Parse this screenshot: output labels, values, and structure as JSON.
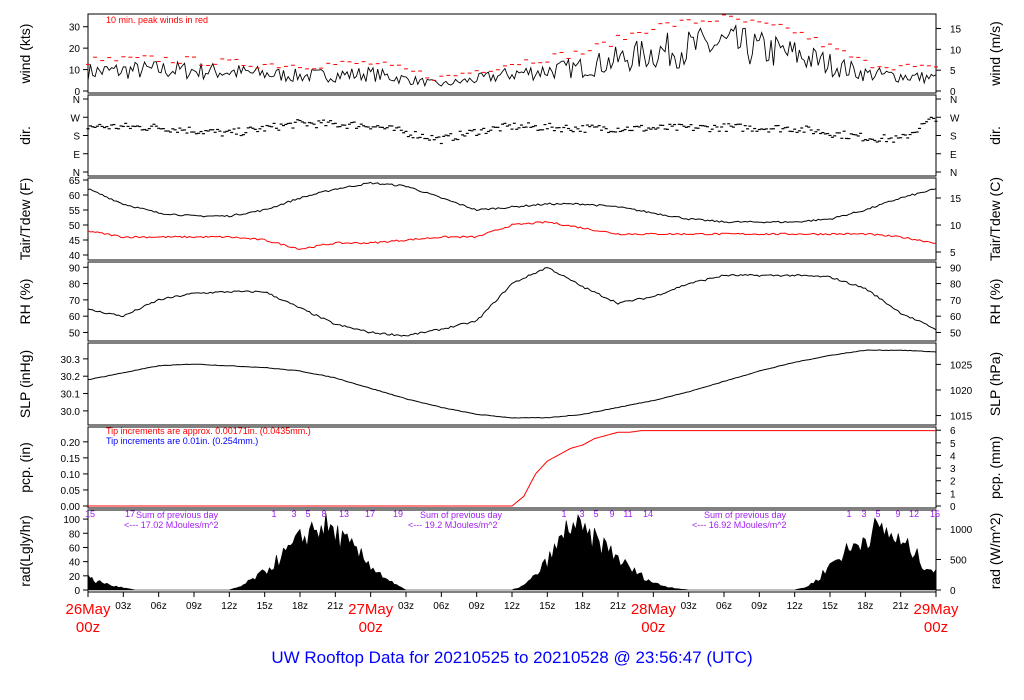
{
  "title": "UW Rooftop Data for 20210525  to  20210528 @ 23:56:47  (UTC)",
  "colors": {
    "title": "#0000ff",
    "red": "#ff0000",
    "blue": "#0000ff",
    "purple": "#a020f0",
    "black": "#000000"
  },
  "chart_data": [
    {
      "type": "line",
      "ylabel_left": "wind (kts)",
      "ylabel_right": "wind (m/s)",
      "ylim": [
        0,
        35
      ],
      "yticks_left": [
        0,
        10,
        20,
        30
      ],
      "yticks_right": [
        0,
        5,
        10,
        15
      ],
      "annotation": "10 min. peak winds in red",
      "series": [
        {
          "color": "#000000",
          "x": [
            0,
            6,
            12,
            18,
            24,
            30,
            36,
            42,
            48,
            54,
            60,
            66,
            72
          ],
          "values": [
            9,
            10,
            9,
            7,
            8,
            3,
            8,
            11,
            18,
            22,
            17,
            8,
            6
          ]
        },
        {
          "color": "#ff0000",
          "x": [
            0,
            6,
            12,
            18,
            24,
            30,
            36,
            42,
            48,
            54,
            60,
            66,
            72
          ],
          "values": [
            14,
            15,
            13,
            12,
            13,
            6,
            13,
            18,
            30,
            34,
            28,
            13,
            10
          ]
        }
      ]
    },
    {
      "type": "scatter",
      "ylabel_left": "dir.",
      "ylabel_right": "dir.",
      "yticks_left": [
        "N",
        "E",
        "S",
        "W",
        "N"
      ],
      "yticks_right": [
        "N",
        "E",
        "S",
        "W",
        "N"
      ],
      "series": [
        {
          "x": [
            0,
            6,
            9,
            12,
            18,
            24,
            30,
            33,
            36,
            42,
            48,
            54,
            60,
            66,
            69,
            72
          ],
          "values": [
            225,
            220,
            205,
            190,
            240,
            230,
            160,
            200,
            225,
            215,
            215,
            220,
            215,
            170,
            160,
            270
          ]
        }
      ]
    },
    {
      "type": "line",
      "ylabel_left": "Tair/Tdew (F)",
      "ylabel_right": "Tair/Tdew (C)",
      "ylim": [
        39,
        65
      ],
      "yticks_left": [
        40,
        45,
        50,
        55,
        60,
        65
      ],
      "yticks_right": [
        5,
        10,
        15
      ],
      "series": [
        {
          "color": "#000000",
          "x": [
            0,
            3,
            6,
            9,
            12,
            15,
            18,
            21,
            24,
            27,
            30,
            33,
            36,
            39,
            42,
            45,
            48,
            51,
            54,
            57,
            60,
            63,
            66,
            69,
            72
          ],
          "values": [
            62,
            57,
            54,
            53,
            53,
            55,
            59,
            62,
            64,
            63,
            59,
            55,
            56,
            57,
            57,
            56,
            54,
            52,
            51,
            51,
            51,
            52,
            55,
            59,
            62
          ]
        },
        {
          "color": "#ff0000",
          "x": [
            0,
            3,
            6,
            9,
            12,
            15,
            18,
            21,
            24,
            27,
            30,
            33,
            36,
            39,
            42,
            45,
            48,
            51,
            54,
            57,
            60,
            63,
            66,
            69,
            72
          ],
          "values": [
            48,
            46,
            46,
            46,
            46,
            45,
            42,
            44,
            44,
            45,
            46,
            46,
            50,
            51,
            49,
            47,
            47,
            47,
            47,
            47,
            47,
            47,
            47,
            46,
            44
          ]
        }
      ]
    },
    {
      "type": "line",
      "ylabel_left": "RH (%)",
      "ylabel_right": "RH (%)",
      "ylim": [
        46,
        92
      ],
      "yticks_left": [
        50,
        60,
        70,
        80,
        90
      ],
      "yticks_right": [
        50,
        60,
        70,
        80,
        90
      ],
      "series": [
        {
          "color": "#000000",
          "x": [
            0,
            3,
            6,
            9,
            12,
            15,
            18,
            21,
            24,
            27,
            30,
            33,
            36,
            39,
            42,
            45,
            48,
            51,
            54,
            57,
            60,
            63,
            66,
            69,
            72
          ],
          "values": [
            64,
            60,
            70,
            74,
            75,
            75,
            65,
            55,
            50,
            48,
            52,
            57,
            80,
            90,
            78,
            68,
            72,
            80,
            85,
            85,
            85,
            84,
            77,
            62,
            52
          ]
        }
      ]
    },
    {
      "type": "line",
      "ylabel_left": "SLP (inHg)",
      "ylabel_right": "SLP (hPa)",
      "ylim": [
        29.93,
        30.38
      ],
      "yticks_left": [
        30.0,
        30.1,
        30.2,
        30.3
      ],
      "yticks_right": [
        1015,
        1020,
        1025
      ],
      "series": [
        {
          "color": "#000000",
          "x": [
            0,
            3,
            6,
            9,
            12,
            15,
            18,
            21,
            24,
            27,
            30,
            33,
            36,
            39,
            42,
            45,
            48,
            51,
            54,
            57,
            60,
            63,
            66,
            69,
            72
          ],
          "values": [
            30.18,
            30.22,
            30.26,
            30.27,
            30.26,
            30.25,
            30.23,
            30.19,
            30.13,
            30.07,
            30.02,
            29.98,
            29.96,
            29.96,
            29.98,
            30.02,
            30.06,
            30.11,
            30.17,
            30.23,
            30.28,
            30.32,
            30.35,
            30.35,
            30.34
          ]
        }
      ]
    },
    {
      "type": "line",
      "ylabel_left": "pcp. (in)",
      "ylabel_right": "pcp. (mm)",
      "ylim": [
        0,
        0.24
      ],
      "yticks_left": [
        0.0,
        0.05,
        0.1,
        0.15,
        0.2
      ],
      "yticks_right": [
        0,
        1,
        2,
        3,
        4,
        5,
        6
      ],
      "annotations": [
        "Tip increments are approx. 0.00171in. (0.0435mm.)",
        "Tip increments are 0.01in. (0.254mm.)"
      ],
      "series": [
        {
          "color": "#ff0000",
          "x": [
            0,
            36,
            37,
            38,
            39,
            40,
            41,
            42,
            43,
            44,
            45,
            46,
            47,
            48,
            72
          ],
          "values": [
            0,
            0,
            0.03,
            0.1,
            0.14,
            0.16,
            0.18,
            0.19,
            0.21,
            0.22,
            0.23,
            0.23,
            0.235,
            0.235,
            0.235
          ]
        }
      ]
    },
    {
      "type": "area",
      "ylabel_left": "rad(Lgly/hr)",
      "ylabel_right": "rad (W/m^2)",
      "ylim": [
        0,
        110
      ],
      "yticks_left": [
        0,
        20,
        40,
        60,
        80,
        100
      ],
      "yticks_right": [
        0,
        500,
        1000
      ],
      "daily_sums": [
        "Sum of previous day",
        "<--- 17.02 MJoules/m^2",
        "Sum of previous day",
        "<--- 19.2 MJoules/m^2",
        "Sum of previous day",
        "<--- 16.92 MJoules/m^2"
      ],
      "hour_markers": [
        "15",
        "17",
        "1",
        "3",
        "5",
        "8",
        "13",
        "17",
        "19",
        "1",
        "3",
        "5",
        "9",
        "11",
        "14",
        "1",
        "3",
        "5",
        "9",
        "12",
        "15"
      ],
      "series": [
        {
          "color": "#000000",
          "x": [
            0,
            0.5,
            1,
            2,
            3,
            4,
            12,
            13,
            14,
            15,
            16,
            17,
            18,
            19,
            20,
            21,
            22,
            23,
            24,
            25,
            26,
            27,
            36,
            37,
            38,
            39,
            40,
            41,
            42,
            43,
            44,
            45,
            46,
            47,
            48,
            49,
            50,
            51,
            60,
            61,
            62,
            63,
            64,
            65,
            66,
            67,
            68,
            69,
            70,
            71,
            72
          ],
          "values": [
            25,
            10,
            12,
            6,
            3,
            0,
            0,
            5,
            15,
            25,
            40,
            55,
            70,
            85,
            90,
            80,
            65,
            50,
            35,
            20,
            8,
            0,
            0,
            6,
            20,
            40,
            65,
            95,
            80,
            70,
            60,
            45,
            30,
            20,
            10,
            5,
            2,
            0,
            0,
            4,
            15,
            35,
            50,
            60,
            75,
            85,
            80,
            65,
            55,
            35,
            25
          ]
        }
      ]
    },
    {
      "type": "axis",
      "date_labels": [
        {
          "day": "26May",
          "hour": "00z"
        },
        {
          "day": "27May",
          "hour": "00z"
        },
        {
          "day": "28May",
          "hour": "00z"
        },
        {
          "day": "29May",
          "hour": "00z"
        }
      ],
      "hour_labels": [
        "03z",
        "06z",
        "09z",
        "12z",
        "15z",
        "18z",
        "21z"
      ]
    }
  ]
}
